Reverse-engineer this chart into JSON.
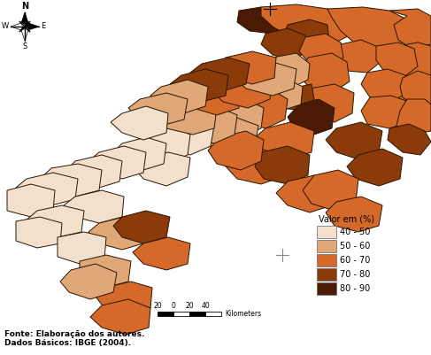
{
  "legend_title": "Valor em (%)",
  "legend_entries": [
    {
      "label": "40 - 50",
      "color": "#f2e0cc"
    },
    {
      "label": "50 - 60",
      "color": "#e0a878"
    },
    {
      "label": "60 - 70",
      "color": "#d4692a"
    },
    {
      "label": "70 - 80",
      "color": "#8b3a0a"
    },
    {
      "label": "80 - 90",
      "color": "#4a1a05"
    }
  ],
  "source_line1": "Fonte: Elaboração dos autores.",
  "source_line2": "Dados Básicos: IBGE (2004).",
  "background_color": "#ffffff",
  "border_color": "#2a1500",
  "figsize": [
    4.87,
    4.01
  ],
  "dpi": 100
}
